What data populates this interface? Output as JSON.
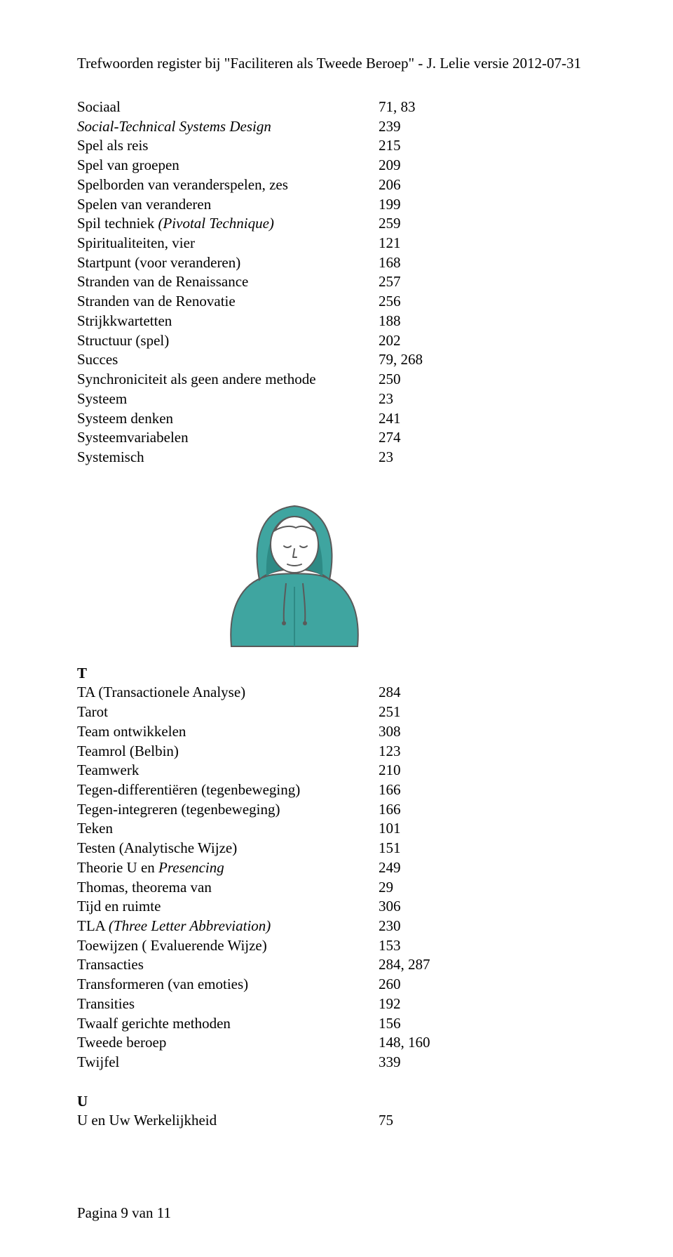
{
  "header": "Trefwoorden register bij \"Faciliteren als Tweede Beroep\" - J. Lelie versie 2012-07-31",
  "sectionS": [
    {
      "term": "Sociaal",
      "val": "71, 83"
    },
    {
      "term": "Social-Technical Systems Design",
      "val": "239",
      "italic": true
    },
    {
      "term": "Spel als reis",
      "val": "215"
    },
    {
      "term": "Spel van groepen",
      "val": "209"
    },
    {
      "term": "Spelborden van veranderspelen, zes",
      "val": "206"
    },
    {
      "term": "Spelen van veranderen",
      "val": "199"
    },
    {
      "term": "Spil techniek (Pivotal Technique)",
      "val": "259",
      "italicPart": "(Pivotal Technique)"
    },
    {
      "term": "Spiritualiteiten, vier",
      "val": "121"
    },
    {
      "term": "Startpunt (voor veranderen)",
      "val": "168"
    },
    {
      "term": "Stranden van de Renaissance",
      "val": "257"
    },
    {
      "term": "Stranden van de Renovatie",
      "val": "256"
    },
    {
      "term": "Strijkkwartetten",
      "val": "188"
    },
    {
      "term": "Structuur (spel)",
      "val": "202"
    },
    {
      "term": "Succes",
      "val": "79, 268"
    },
    {
      "term": "Synchroniciteit als geen andere methode",
      "val": "250"
    },
    {
      "term": "Systeem",
      "val": "23"
    },
    {
      "term": "Systeem denken",
      "val": "241"
    },
    {
      "term": "Systeemvariabelen",
      "val": "274"
    },
    {
      "term": "Systemisch",
      "val": "23"
    }
  ],
  "letterT": "T",
  "sectionT": [
    {
      "term": "TA (Transactionele Analyse)",
      "val": "284"
    },
    {
      "term": "Tarot",
      "val": "251"
    },
    {
      "term": "Team ontwikkelen",
      "val": "308"
    },
    {
      "term": "Teamrol (Belbin)",
      "val": "123"
    },
    {
      "term": "Teamwerk",
      "val": "210"
    },
    {
      "term": "Tegen-differentiëren (tegenbeweging)",
      "val": "166"
    },
    {
      "term": "Tegen-integreren (tegenbeweging)",
      "val": "166"
    },
    {
      "term": "Teken",
      "val": "101"
    },
    {
      "term": "Testen (Analytische Wijze)",
      "val": "151"
    },
    {
      "term": "Theorie U en Presencing",
      "val": "249",
      "italicPart": "Presencing"
    },
    {
      "term": "Thomas, theorema van",
      "val": "29"
    },
    {
      "term": "Tijd en ruimte",
      "val": "306"
    },
    {
      "term": "TLA (Three Letter Abbreviation)",
      "val": "230",
      "italicPart": "(Three Letter Abbreviation)"
    },
    {
      "term": "Toewijzen ( Evaluerende Wijze)",
      "val": "153"
    },
    {
      "term": "Transacties",
      "val": "284, 287"
    },
    {
      "term": "Transformeren (van emoties)",
      "val": "260"
    },
    {
      "term": "Transities",
      "val": "192"
    },
    {
      "term": "Twaalf gerichte methoden",
      "val": "156"
    },
    {
      "term": "Tweede beroep",
      "val": "148, 160"
    },
    {
      "term": "Twijfel",
      "val": "339"
    }
  ],
  "letterU": "U",
  "sectionU": [
    {
      "term": "U en Uw Werkelijkheid",
      "val": "75"
    }
  ],
  "footer": "Pagina 9 van 11",
  "illustration": {
    "hoodie_color": "#3fa5a0",
    "hoodie_shadow": "#2e8a85",
    "line_color": "#5a5a5a",
    "skin": "#ffffff"
  }
}
